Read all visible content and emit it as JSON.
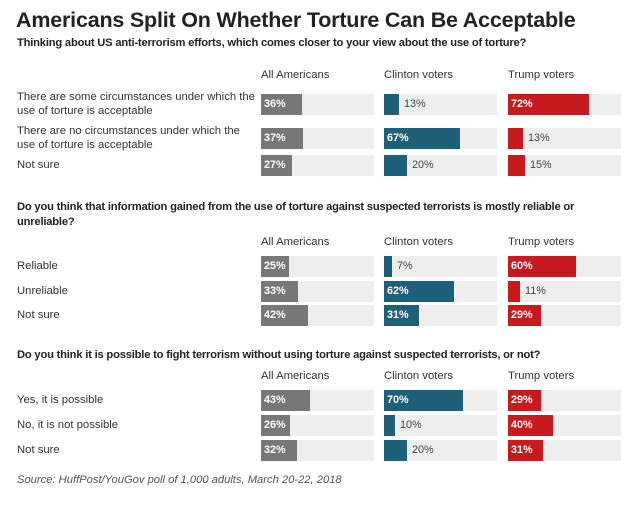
{
  "title": "Americans Split On Whether Torture Can Be Acceptable",
  "source": "Source: HuffPost/YouGov poll of 1,000 adults, March 20-22, 2018",
  "colors": {
    "all": "#777777",
    "clinton": "#1e5f79",
    "trump": "#c8191e",
    "track": "#eeeeee"
  },
  "chart_data": [
    {
      "type": "bar",
      "title": "Thinking about US anti-terrorism efforts, which comes closer to your view about the use of torture?",
      "columns": [
        "All Americans",
        "Clinton voters",
        "Trump voters"
      ],
      "categories": [
        "There are some circumstances under which the use of torture is acceptable",
        "There are no circumstances under which the use of torture is acceptable",
        "Not sure"
      ],
      "series": [
        {
          "name": "All Americans",
          "values": [
            36,
            37,
            27
          ]
        },
        {
          "name": "Clinton voters",
          "values": [
            13,
            67,
            20
          ]
        },
        {
          "name": "Trump voters",
          "values": [
            72,
            13,
            15
          ]
        }
      ],
      "xlim": [
        0,
        100
      ]
    },
    {
      "type": "bar",
      "title": "Do you think that information gained from the use of torture against suspected terrorists is mostly reliable or unreliable?",
      "columns": [
        "All Americans",
        "Clinton voters",
        "Trump voters"
      ],
      "categories": [
        "Reliable",
        "Unreliable",
        "Not sure"
      ],
      "series": [
        {
          "name": "All Americans",
          "values": [
            25,
            33,
            42
          ]
        },
        {
          "name": "Clinton voters",
          "values": [
            7,
            62,
            31
          ]
        },
        {
          "name": "Trump voters",
          "values": [
            60,
            11,
            29
          ]
        }
      ],
      "xlim": [
        0,
        100
      ]
    },
    {
      "type": "bar",
      "title": "Do you think it is possible to fight terrorism without using torture against suspected terrorists, or not?",
      "columns": [
        "All Americans",
        "Clinton voters",
        "Trump voters"
      ],
      "categories": [
        "Yes, it is possible",
        "No, it is not possible",
        "Not sure"
      ],
      "series": [
        {
          "name": "All Americans",
          "values": [
            43,
            26,
            32
          ]
        },
        {
          "name": "Clinton voters",
          "values": [
            70,
            10,
            20
          ]
        },
        {
          "name": "Trump voters",
          "values": [
            29,
            40,
            31
          ]
        }
      ],
      "xlim": [
        0,
        100
      ]
    }
  ]
}
